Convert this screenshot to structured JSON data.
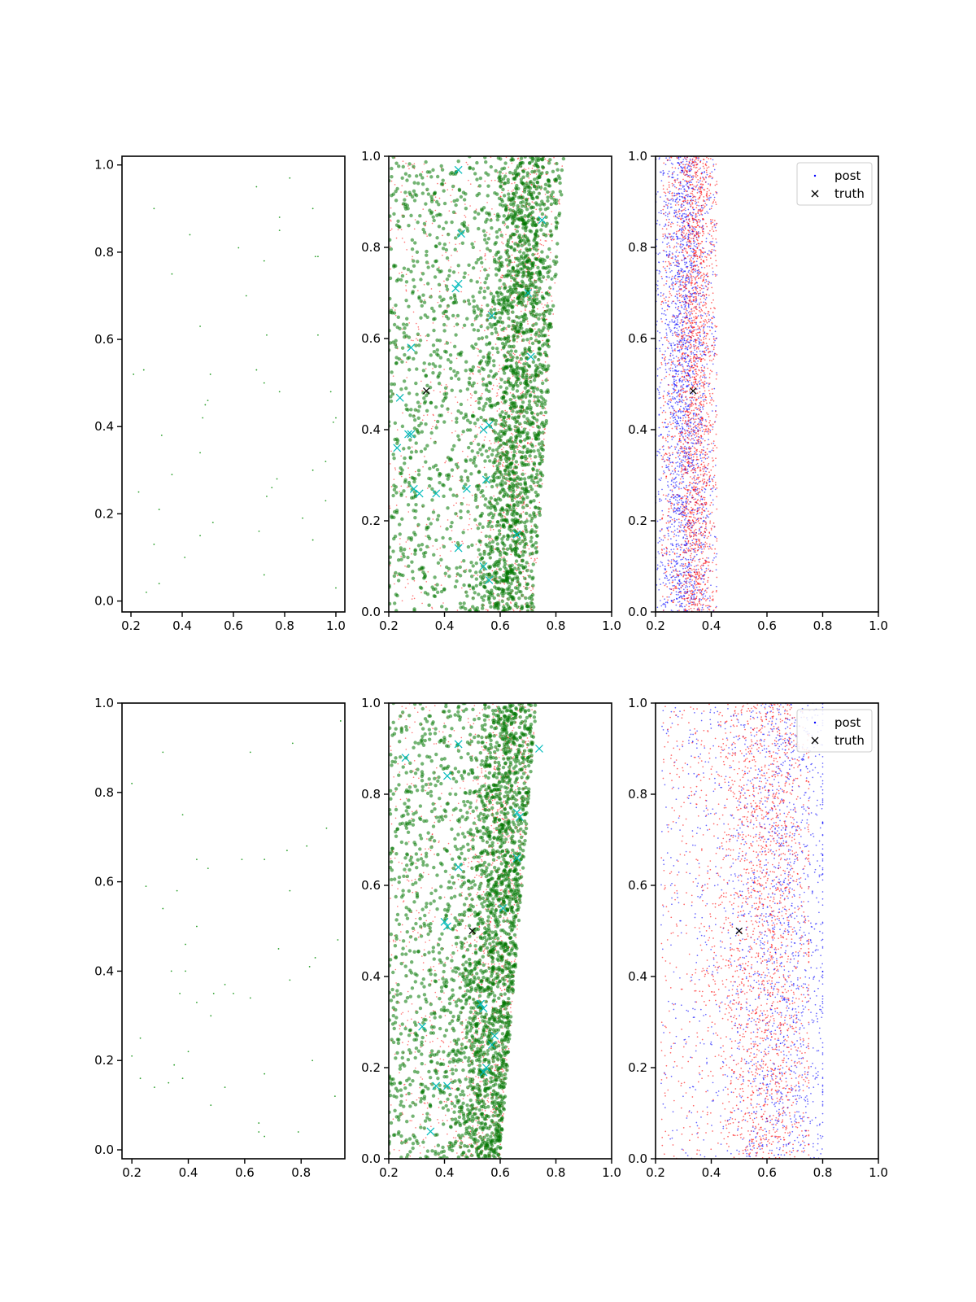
{
  "colors": {
    "samples": "#2ca02c",
    "green_markers": "#007700",
    "prior_red": "#ff0000",
    "posterior_blue": "#0000ff",
    "cyan_markers": "#00bbbb",
    "truth": "#000000"
  },
  "chart_data": [
    {
      "type": "scatter",
      "row": 0,
      "col": 0,
      "xlim": [
        0.165,
        1.035
      ],
      "ylim": [
        -0.025,
        1.02
      ],
      "xticks": [
        "0.2",
        "0.4",
        "0.6",
        "0.8",
        "1.0"
      ],
      "yticks": [
        "0.0",
        "0.2",
        "0.4",
        "0.6",
        "0.8",
        "1.0"
      ],
      "series": [
        {
          "kind": "samples",
          "points": [
            [
              0.69,
              0.95
            ],
            [
              0.82,
              0.97
            ],
            [
              0.29,
              0.9
            ],
            [
              0.91,
              0.9
            ],
            [
              0.78,
              0.88
            ],
            [
              0.43,
              0.84
            ],
            [
              0.78,
              0.85
            ],
            [
              0.62,
              0.81
            ],
            [
              0.92,
              0.79
            ],
            [
              0.93,
              0.79
            ],
            [
              0.72,
              0.78
            ],
            [
              0.36,
              0.75
            ],
            [
              0.65,
              0.7
            ],
            [
              0.47,
              0.63
            ],
            [
              0.73,
              0.61
            ],
            [
              0.93,
              0.61
            ],
            [
              0.25,
              0.53
            ],
            [
              0.21,
              0.52
            ],
            [
              0.51,
              0.52
            ],
            [
              0.69,
              0.53
            ],
            [
              0.72,
              0.5
            ],
            [
              0.78,
              0.48
            ],
            [
              0.98,
              0.48
            ],
            [
              0.49,
              0.45
            ],
            [
              0.5,
              0.46
            ],
            [
              0.48,
              0.42
            ],
            [
              0.99,
              0.41
            ],
            [
              1.0,
              0.42
            ],
            [
              0.32,
              0.38
            ],
            [
              0.47,
              0.34
            ],
            [
              0.96,
              0.32
            ],
            [
              0.36,
              0.29
            ],
            [
              0.91,
              0.3
            ],
            [
              0.77,
              0.28
            ],
            [
              0.75,
              0.26
            ],
            [
              0.73,
              0.24
            ],
            [
              0.23,
              0.25
            ],
            [
              0.31,
              0.21
            ],
            [
              0.96,
              0.23
            ],
            [
              0.52,
              0.18
            ],
            [
              0.87,
              0.19
            ],
            [
              0.47,
              0.15
            ],
            [
              0.7,
              0.16
            ],
            [
              0.91,
              0.14
            ],
            [
              0.29,
              0.13
            ],
            [
              0.41,
              0.1
            ],
            [
              0.72,
              0.06
            ],
            [
              0.31,
              0.04
            ],
            [
              0.26,
              0.02
            ],
            [
              1.0,
              0.03
            ]
          ]
        }
      ]
    },
    {
      "type": "scatter",
      "row": 0,
      "col": 1,
      "xlim": [
        0.2,
        1.0
      ],
      "ylim": [
        0.0,
        1.0
      ],
      "xticks": [
        "0.2",
        "0.4",
        "0.6",
        "0.8",
        "1.0"
      ],
      "yticks": [
        "0.0",
        "0.2",
        "0.4",
        "0.6",
        "0.8",
        "1.0"
      ],
      "band": {
        "left_bottom": 0.2,
        "left_top": 0.2,
        "right_bottom": 0.72,
        "right_top": 0.83,
        "center_bottom": 0.63,
        "center_top": 0.7
      },
      "series": [
        {
          "kind": "prior",
          "marker": "dot",
          "count": 1400
        },
        {
          "kind": "samples",
          "marker": "circle",
          "count": 2600
        },
        {
          "kind": "proposals",
          "marker": "x",
          "points": [
            [
              0.45,
              0.97
            ],
            [
              0.75,
              0.86
            ],
            [
              0.46,
              0.83
            ],
            [
              0.45,
              0.72
            ],
            [
              0.44,
              0.71
            ],
            [
              0.7,
              0.7
            ],
            [
              0.57,
              0.65
            ],
            [
              0.28,
              0.58
            ],
            [
              0.71,
              0.56
            ],
            [
              0.24,
              0.47
            ],
            [
              0.56,
              0.41
            ],
            [
              0.54,
              0.4
            ],
            [
              0.27,
              0.39
            ],
            [
              0.28,
              0.39
            ],
            [
              0.23,
              0.36
            ],
            [
              0.55,
              0.29
            ],
            [
              0.29,
              0.27
            ],
            [
              0.31,
              0.26
            ],
            [
              0.37,
              0.26
            ],
            [
              0.45,
              0.14
            ],
            [
              0.66,
              0.17
            ],
            [
              0.54,
              0.1
            ],
            [
              0.56,
              0.07
            ],
            [
              0.48,
              0.27
            ]
          ]
        },
        {
          "kind": "truth",
          "marker": "x",
          "points": [
            [
              0.335,
              0.485
            ]
          ]
        }
      ]
    },
    {
      "type": "scatter",
      "row": 0,
      "col": 2,
      "xlim": [
        0.2,
        1.0
      ],
      "ylim": [
        0.0,
        1.0
      ],
      "xticks": [
        "0.2",
        "0.4",
        "0.6",
        "0.8",
        "1.0"
      ],
      "yticks": [
        "0.0",
        "0.2",
        "0.4",
        "0.6",
        "0.8",
        "1.0"
      ],
      "series": [
        {
          "name": "post",
          "kind": "posterior",
          "marker": "dot",
          "count": 2200,
          "x_range": [
            0.2,
            0.42
          ],
          "center": 0.3
        },
        {
          "kind": "prior",
          "marker": "dot",
          "count": 2200,
          "x_range": [
            0.22,
            0.42
          ],
          "center": 0.34
        },
        {
          "name": "truth",
          "kind": "truth",
          "marker": "x",
          "points": [
            [
              0.335,
              0.485
            ]
          ]
        }
      ],
      "legend": {
        "position": "top-right"
      }
    },
    {
      "type": "scatter",
      "row": 1,
      "col": 0,
      "xlim": [
        0.165,
        0.955
      ],
      "ylim": [
        -0.02,
        1.0
      ],
      "xticks": [
        "0.2",
        "0.4",
        "0.6",
        "0.8"
      ],
      "yticks": [
        "0.0",
        "0.2",
        "0.4",
        "0.6",
        "0.8",
        "1.0"
      ],
      "series": [
        {
          "kind": "samples",
          "points": [
            [
              0.94,
              0.96
            ],
            [
              0.77,
              0.91
            ],
            [
              0.31,
              0.89
            ],
            [
              0.62,
              0.89
            ],
            [
              0.2,
              0.82
            ],
            [
              0.38,
              0.75
            ],
            [
              0.89,
              0.72
            ],
            [
              0.82,
              0.68
            ],
            [
              0.75,
              0.67
            ],
            [
              0.43,
              0.65
            ],
            [
              0.59,
              0.65
            ],
            [
              0.67,
              0.65
            ],
            [
              0.47,
              0.63
            ],
            [
              0.25,
              0.59
            ],
            [
              0.76,
              0.58
            ],
            [
              0.36,
              0.58
            ],
            [
              0.31,
              0.54
            ],
            [
              0.43,
              0.5
            ],
            [
              0.39,
              0.46
            ],
            [
              0.72,
              0.45
            ],
            [
              0.93,
              0.47
            ],
            [
              0.83,
              0.41
            ],
            [
              0.85,
              0.43
            ],
            [
              0.34,
              0.4
            ],
            [
              0.39,
              0.4
            ],
            [
              0.76,
              0.38
            ],
            [
              0.53,
              0.37
            ],
            [
              0.49,
              0.35
            ],
            [
              0.56,
              0.35
            ],
            [
              0.37,
              0.35
            ],
            [
              0.43,
              0.33
            ],
            [
              0.62,
              0.34
            ],
            [
              0.48,
              0.3
            ],
            [
              0.23,
              0.25
            ],
            [
              0.4,
              0.22
            ],
            [
              0.2,
              0.21
            ],
            [
              0.35,
              0.19
            ],
            [
              0.84,
              0.2
            ],
            [
              0.67,
              0.17
            ],
            [
              0.23,
              0.16
            ],
            [
              0.33,
              0.15
            ],
            [
              0.38,
              0.16
            ],
            [
              0.28,
              0.14
            ],
            [
              0.53,
              0.14
            ],
            [
              0.92,
              0.12
            ],
            [
              0.48,
              0.1
            ],
            [
              0.65,
              0.06
            ],
            [
              0.65,
              0.04
            ],
            [
              0.67,
              0.03
            ],
            [
              0.79,
              0.04
            ]
          ]
        }
      ]
    },
    {
      "type": "scatter",
      "row": 1,
      "col": 1,
      "xlim": [
        0.2,
        1.0
      ],
      "ylim": [
        0.0,
        1.0
      ],
      "xticks": [
        "0.2",
        "0.4",
        "0.6",
        "0.8",
        "1.0"
      ],
      "yticks": [
        "0.0",
        "0.2",
        "0.4",
        "0.6",
        "0.8",
        "1.0"
      ],
      "band": {
        "left_bottom": 0.2,
        "left_top": 0.2,
        "right_bottom": 0.6,
        "right_top": 0.73,
        "center_bottom": 0.53,
        "center_top": 0.64
      },
      "series": [
        {
          "kind": "prior",
          "marker": "dot",
          "count": 1400
        },
        {
          "kind": "samples",
          "marker": "circle",
          "count": 2600
        },
        {
          "kind": "proposals",
          "marker": "x",
          "points": [
            [
              0.26,
              0.88
            ],
            [
              0.74,
              0.9
            ],
            [
              0.45,
              0.91
            ],
            [
              0.41,
              0.84
            ],
            [
              0.66,
              0.76
            ],
            [
              0.67,
              0.75
            ],
            [
              0.45,
              0.64
            ],
            [
              0.66,
              0.66
            ],
            [
              0.61,
              0.55
            ],
            [
              0.4,
              0.52
            ],
            [
              0.41,
              0.51
            ],
            [
              0.53,
              0.34
            ],
            [
              0.54,
              0.33
            ],
            [
              0.32,
              0.29
            ],
            [
              0.58,
              0.27
            ],
            [
              0.57,
              0.25
            ],
            [
              0.55,
              0.2
            ],
            [
              0.54,
              0.19
            ],
            [
              0.37,
              0.16
            ],
            [
              0.41,
              0.16
            ],
            [
              0.35,
              0.06
            ]
          ]
        },
        {
          "kind": "truth",
          "marker": "x",
          "points": [
            [
              0.5,
              0.5
            ]
          ]
        }
      ]
    },
    {
      "type": "scatter",
      "row": 1,
      "col": 2,
      "xlim": [
        0.2,
        1.0
      ],
      "ylim": [
        0.0,
        1.0
      ],
      "xticks": [
        "0.2",
        "0.4",
        "0.6",
        "0.8",
        "1.0"
      ],
      "yticks": [
        "0.0",
        "0.2",
        "0.4",
        "0.6",
        "0.8",
        "1.0"
      ],
      "series": [
        {
          "name": "post",
          "kind": "posterior",
          "marker": "dot",
          "count": 1800,
          "x_range": [
            0.22,
            0.8
          ],
          "center": 0.66
        },
        {
          "kind": "prior",
          "marker": "dot",
          "count": 2200,
          "x_range": [
            0.22,
            0.75
          ],
          "center": 0.6
        },
        {
          "name": "truth",
          "kind": "truth",
          "marker": "x",
          "points": [
            [
              0.5,
              0.5
            ]
          ]
        }
      ],
      "legend": {
        "position": "top-right"
      }
    }
  ]
}
